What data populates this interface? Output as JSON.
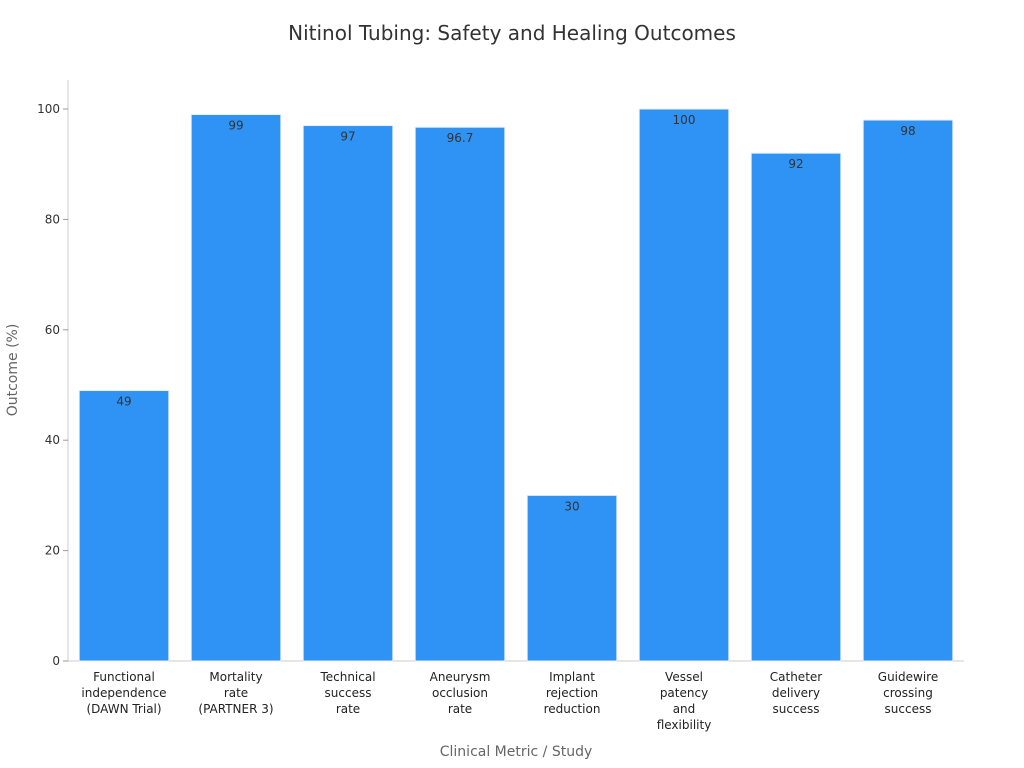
{
  "chart_data": {
    "type": "bar",
    "title": "Nitinol Tubing: Safety and Healing Outcomes",
    "xlabel": "Clinical Metric / Study",
    "ylabel": "Outcome (%)",
    "ylim": [
      0,
      105
    ],
    "yticks": [
      0,
      20,
      40,
      60,
      80,
      100
    ],
    "grid": false,
    "bar_color": "#2f93f6",
    "categories": [
      [
        "Functional",
        "independence",
        "(DAWN Trial)"
      ],
      [
        "Mortality",
        "rate",
        "(PARTNER 3)"
      ],
      [
        "Technical",
        "success",
        "rate"
      ],
      [
        "Aneurysm",
        "occlusion",
        "rate"
      ],
      [
        "Implant",
        "rejection",
        "reduction"
      ],
      [
        "Vessel",
        "patency",
        "and",
        "flexibility"
      ],
      [
        "Catheter",
        "delivery",
        "success"
      ],
      [
        "Guidewire",
        "crossing",
        "success"
      ]
    ],
    "values": [
      49,
      99,
      97,
      96.7,
      30,
      100,
      92,
      98
    ],
    "value_labels": [
      "49",
      "99",
      "97",
      "96.7",
      "30",
      "100",
      "92",
      "98"
    ]
  }
}
